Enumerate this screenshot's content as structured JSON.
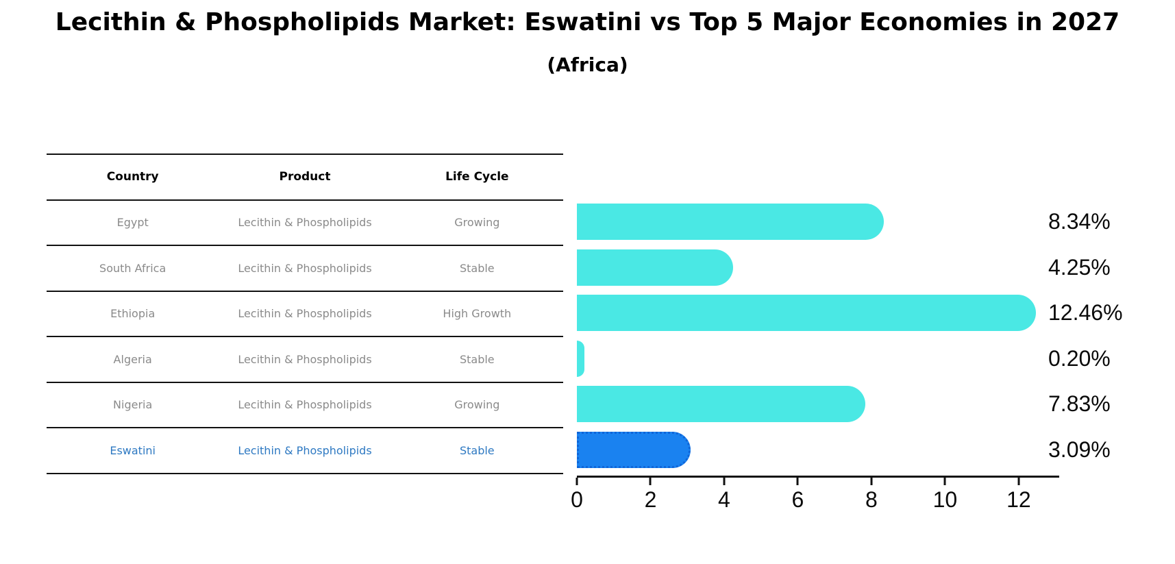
{
  "title": "Lecithin & Phospholipids Market: Eswatini vs Top 5 Major Economies in 2027",
  "subtitle": "(Africa)",
  "table": {
    "headers": {
      "country": "Country",
      "product": "Product",
      "life_cycle": "Life Cycle"
    },
    "rows": [
      {
        "country": "Egypt",
        "product": "Lecithin & Phospholipids",
        "life_cycle": "Growing"
      },
      {
        "country": "South Africa",
        "product": "Lecithin & Phospholipids",
        "life_cycle": "Stable"
      },
      {
        "country": "Ethiopia",
        "product": "Lecithin & Phospholipids",
        "life_cycle": "High Growth"
      },
      {
        "country": "Algeria",
        "product": "Lecithin & Phospholipids",
        "life_cycle": "Stable"
      },
      {
        "country": "Nigeria",
        "product": "Lecithin & Phospholipids",
        "life_cycle": "Growing"
      },
      {
        "country": "Eswatini",
        "product": "Lecithin & Phospholipids",
        "life_cycle": "Stable"
      }
    ],
    "highlighted_row": "Eswatini"
  },
  "chart_data": {
    "type": "bar",
    "orientation": "horizontal",
    "title": "Lecithin & Phospholipids Market: Eswatini vs Top 5 Major Economies in 2027",
    "subtitle": "(Africa)",
    "categories": [
      "Egypt",
      "South Africa",
      "Ethiopia",
      "Algeria",
      "Nigeria",
      "Eswatini"
    ],
    "values": [
      8.34,
      4.25,
      12.46,
      0.2,
      7.83,
      3.09
    ],
    "value_labels": [
      "8.34%",
      "4.25%",
      "12.46%",
      "0.20%",
      "7.83%",
      "3.09%"
    ],
    "x_ticks": [
      "0",
      "2",
      "4",
      "6",
      "8",
      "10",
      "12"
    ],
    "xlim": [
      0,
      13.1
    ],
    "grid": false,
    "legend": null,
    "bar_color": "#4AE8E4",
    "highlight_bar_color": "#1A82F0",
    "highlight_border_color": "#0F65D8",
    "highlighted_category": "Eswatini"
  },
  "colors": {
    "background": "#FFFFFF",
    "title_text": "#000000",
    "table_header_text": "#000000",
    "table_body_text": "#8A8A8A",
    "highlight_text": "#2E79C2",
    "axis_line": "#111111",
    "value_label_text": "#0A0A0A"
  }
}
